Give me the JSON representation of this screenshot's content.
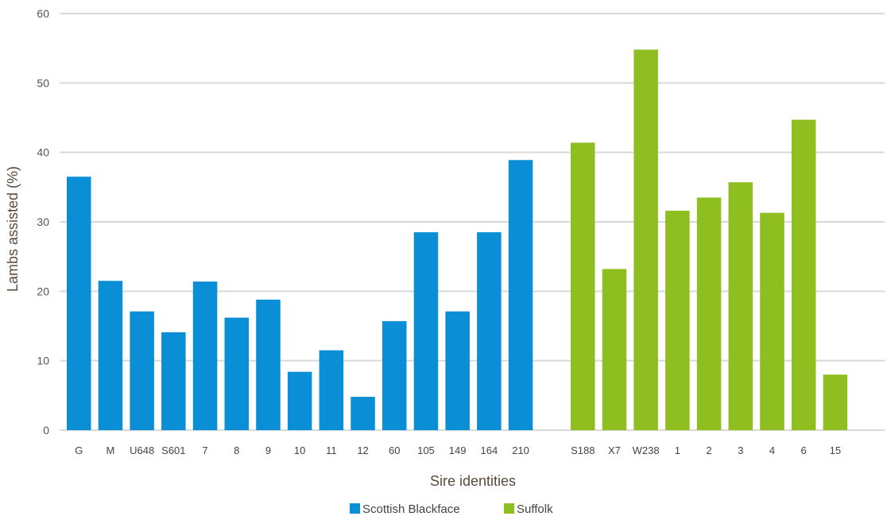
{
  "chart_data": {
    "type": "bar",
    "xlabel": "Sire identities",
    "ylabel": "Lambs assisted (%)",
    "ylim": [
      0,
      60
    ],
    "yticks": [
      0,
      10,
      20,
      30,
      40,
      50,
      60
    ],
    "grid": true,
    "legend_position": "bottom-center",
    "series": [
      {
        "name": "Scottish Blackface",
        "color": "#0a8fd6",
        "categories": [
          "G",
          "M",
          "U648",
          "S601",
          "7",
          "8",
          "9",
          "10",
          "11",
          "12",
          "60",
          "105",
          "149",
          "164",
          "210"
        ],
        "values": [
          36.5,
          21.5,
          17.1,
          14.1,
          21.4,
          16.2,
          18.8,
          8.4,
          11.5,
          4.8,
          15.7,
          28.5,
          17.1,
          28.5,
          38.9
        ]
      },
      {
        "name": "Suffolk",
        "color": "#8fbe21",
        "categories": [
          "S188",
          "X7",
          "W238",
          "1",
          "2",
          "3",
          "4",
          "6",
          "15"
        ],
        "values": [
          41.4,
          23.2,
          54.8,
          31.6,
          33.5,
          35.7,
          31.3,
          44.7,
          8.0
        ]
      }
    ]
  }
}
